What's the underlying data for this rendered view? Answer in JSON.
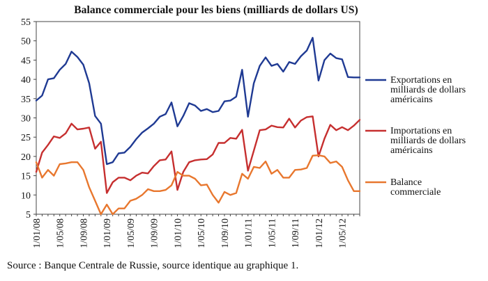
{
  "chart_data": {
    "type": "line",
    "title": "Balance commerciale pour les biens (milliards de dollars US)",
    "ylim": [
      5,
      55
    ],
    "yticks": [
      5,
      10,
      15,
      20,
      25,
      30,
      35,
      40,
      45,
      50,
      55
    ],
    "x": [
      "1/01/08",
      "1/02/08",
      "1/03/08",
      "1/04/08",
      "1/05/08",
      "1/06/08",
      "1/07/08",
      "1/08/08",
      "1/09/08",
      "1/10/08",
      "1/11/08",
      "1/12/08",
      "1/01/09",
      "1/02/09",
      "1/03/09",
      "1/04/09",
      "1/05/09",
      "1/06/09",
      "1/07/09",
      "1/08/09",
      "1/09/09",
      "1/10/09",
      "1/11/09",
      "1/12/09",
      "1/01/10",
      "1/02/10",
      "1/03/10",
      "1/04/10",
      "1/05/10",
      "1/06/10",
      "1/07/10",
      "1/08/10",
      "1/09/10",
      "1/10/10",
      "1/11/10",
      "1/12/10",
      "1/01/11",
      "1/02/11",
      "1/03/11",
      "1/04/11",
      "1/05/11",
      "1/06/11",
      "1/07/11",
      "1/08/11",
      "1/09/11",
      "1/10/11",
      "1/11/11",
      "1/12/11",
      "1/01/12",
      "1/02/12",
      "1/03/12",
      "1/04/12",
      "1/05/12",
      "1/06/12",
      "1/07/12",
      "1/08/12"
    ],
    "xtick_labels": [
      "1/01/08",
      "1/05/08",
      "1/09/08",
      "1/01/09",
      "1/05/09",
      "1/09/09",
      "1/01/10",
      "1/05/10",
      "1/09/10",
      "1/01/11",
      "1/05/11",
      "1/09/11",
      "1/01/12",
      "1/05/12"
    ],
    "series": [
      {
        "name": "Exportations en milliards de dollars américains",
        "color": "#1f3a93",
        "values": [
          34.5,
          35.8,
          40,
          40.3,
          42.5,
          44,
          47.2,
          45.8,
          43.8,
          39,
          30.5,
          28.5,
          18,
          18.5,
          20.8,
          21,
          22.5,
          24.5,
          26.2,
          27.3,
          28.5,
          30.3,
          31,
          34,
          27.8,
          30.5,
          33.8,
          33.2,
          31.8,
          32.3,
          31.5,
          31.8,
          34.3,
          34.5,
          35.5,
          42.5,
          30.3,
          39,
          43.5,
          45.7,
          43.5,
          44,
          42,
          44.5,
          44,
          46,
          47.5,
          50.8,
          39.7,
          45,
          46.7,
          45.5,
          45.2,
          40.6,
          40.5,
          40.5
        ]
      },
      {
        "name": "Importations en milliards de dollars américains",
        "color": "#c62f2f",
        "values": [
          16,
          21,
          23,
          25.2,
          24.8,
          26,
          28.5,
          27,
          27.2,
          27.5,
          22,
          23.8,
          10.5,
          13.3,
          14.5,
          14.5,
          13.8,
          15,
          15.8,
          15.6,
          17.5,
          19,
          19.2,
          21.3,
          11.3,
          16,
          18.5,
          19,
          19.2,
          19.3,
          20.5,
          23.5,
          23.5,
          24.8,
          24.6,
          26.9,
          16.3,
          21.5,
          26.8,
          27,
          28,
          27.6,
          27.5,
          29.8,
          27.5,
          29.3,
          30.2,
          30.4,
          20,
          24.6,
          28.2,
          26.8,
          27.6,
          26.8,
          28,
          29.5
        ]
      },
      {
        "name": "Balance commerciale",
        "color": "#e8772e",
        "values": [
          18.5,
          14.5,
          16.5,
          15,
          18,
          18.2,
          18.5,
          18.5,
          16.5,
          12,
          8.5,
          5,
          7.5,
          5,
          6.5,
          6.5,
          8.5,
          9,
          10,
          11.5,
          11,
          11,
          11.3,
          12.5,
          16,
          15,
          15,
          14.2,
          12.5,
          12.7,
          10,
          8,
          10.8,
          10,
          10.5,
          15.5,
          14.2,
          17.3,
          17,
          18.7,
          15.5,
          16.5,
          14.5,
          14.5,
          16.5,
          16.6,
          17,
          20.2,
          20.3,
          20,
          18.3,
          18.7,
          17.3,
          13.8,
          11,
          11
        ]
      }
    ],
    "legend_position": "right",
    "grid": false
  },
  "source": "Source : Banque Centrale de Russie, source identique au graphique 1."
}
